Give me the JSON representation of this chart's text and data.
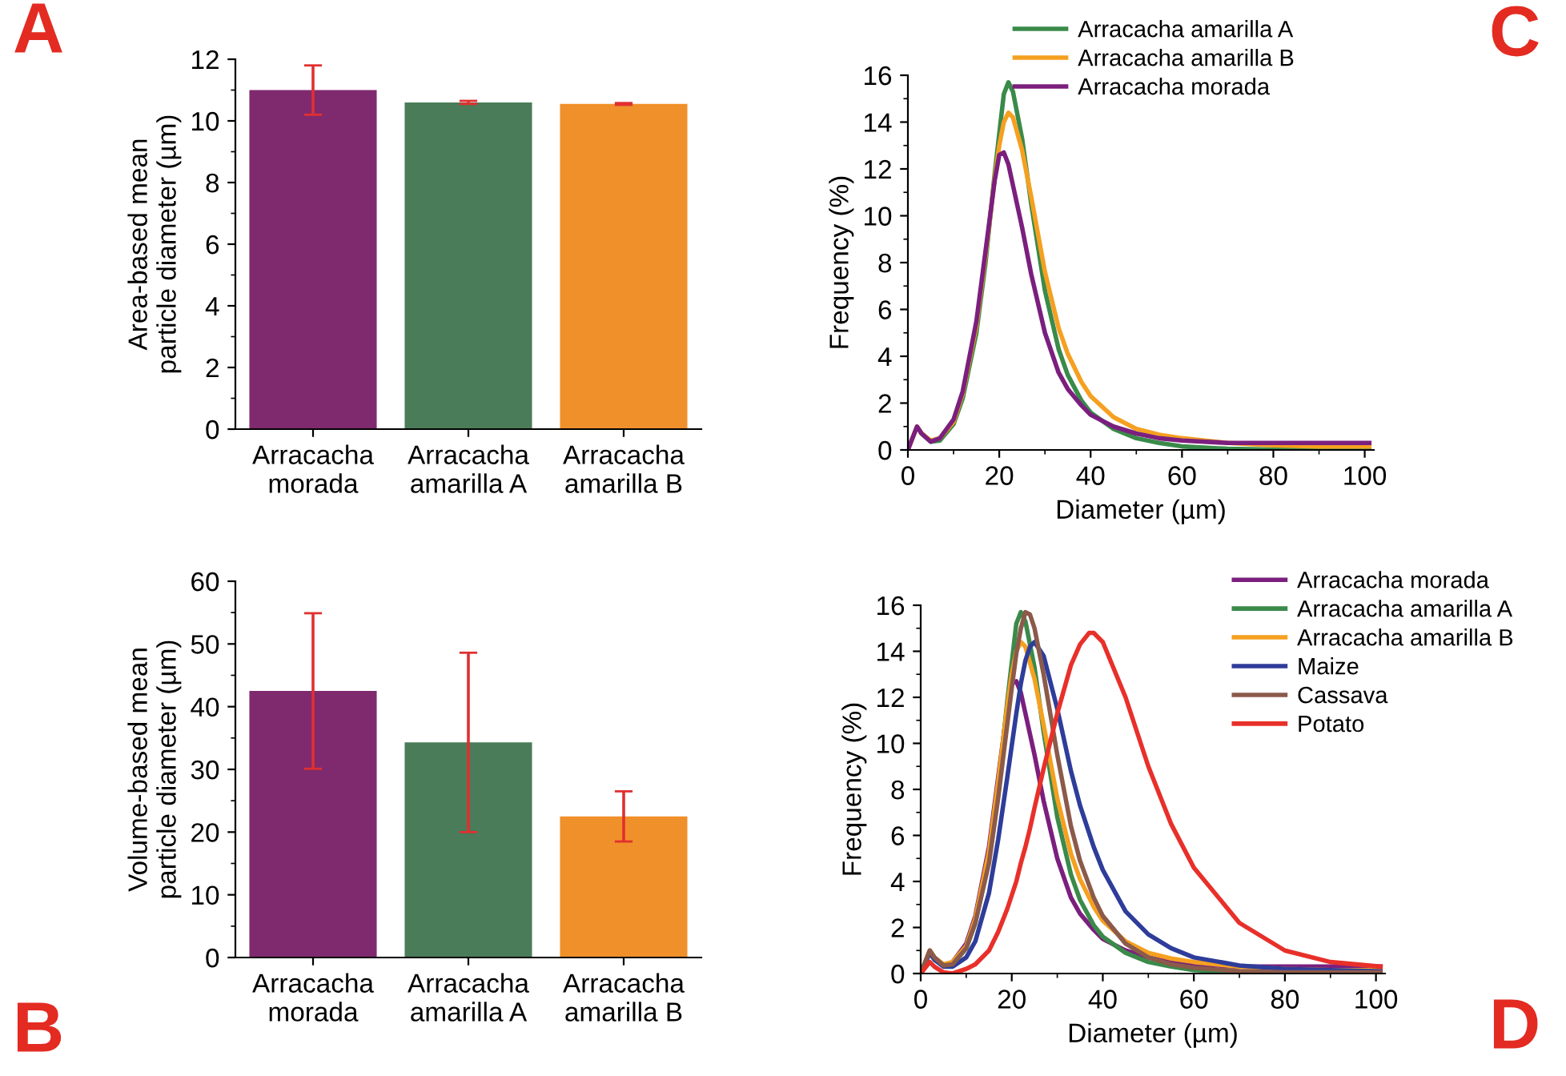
{
  "chart_data": [
    {
      "type": "bar",
      "ylabel": "Area-based mean\nparticle diameter (µm)",
      "categories": [
        "Arracacha\nmorada",
        "Arracacha\namarilla A",
        "Arracacha\namarilla B"
      ],
      "values": [
        11.0,
        10.6,
        10.55
      ],
      "colors": [
        "#7f2a6e",
        "#4a7c59",
        "#f0902a"
      ],
      "errors": [
        0.8,
        0.05,
        0.03
      ],
      "ylim": [
        0,
        12
      ],
      "yticks": [
        0,
        2,
        4,
        6,
        8,
        10,
        12
      ],
      "annotations": [
        "A"
      ]
    },
    {
      "type": "bar",
      "ylabel": "Volume-based mean\nparticle diameter (µm)",
      "categories": [
        "Arracacha\nmorada",
        "Arracacha\namarilla A",
        "Arracacha\namarilla B"
      ],
      "values": [
        42.5,
        34.3,
        22.5
      ],
      "colors": [
        "#7f2a6e",
        "#4a7c59",
        "#f0902a"
      ],
      "errors": [
        12.4,
        14.3,
        4.0
      ],
      "ylim": [
        0,
        60
      ],
      "yticks": [
        0,
        10,
        20,
        30,
        40,
        50,
        60
      ],
      "annotations": [
        "B"
      ]
    },
    {
      "type": "line",
      "xlabel": "Diameter (µm)",
      "ylabel": "Frequency (%)",
      "xlim": [
        0,
        102
      ],
      "xticks": [
        0,
        20,
        40,
        60,
        80,
        100
      ],
      "ylim": [
        0,
        16
      ],
      "yticks": [
        0,
        2,
        4,
        6,
        8,
        10,
        12,
        14,
        16
      ],
      "legend": "top",
      "annotations": [
        "C"
      ],
      "series": [
        {
          "name": "Arracacha amarilla A",
          "color": "#3a8a4a",
          "x": [
            3,
            5,
            7,
            10,
            12,
            15,
            17,
            19,
            20,
            21,
            22,
            23,
            25,
            27,
            30,
            33,
            35,
            38,
            40,
            45,
            50,
            55,
            60,
            70,
            80,
            90,
            101
          ],
          "values": [
            0.7,
            0.35,
            0.4,
            1.1,
            2.2,
            5.0,
            8.0,
            11.8,
            13.5,
            15.2,
            15.7,
            15.3,
            13.3,
            10.5,
            6.8,
            4.3,
            3.2,
            2.1,
            1.6,
            0.9,
            0.5,
            0.3,
            0.15,
            0.05,
            0.02,
            0,
            0
          ]
        },
        {
          "name": "Arracacha amarilla B",
          "color": "#f5a020",
          "x": [
            0,
            2,
            3,
            5,
            7,
            10,
            12,
            15,
            17,
            19,
            20,
            21,
            22,
            23,
            25,
            27,
            30,
            33,
            35,
            38,
            40,
            45,
            50,
            55,
            60,
            70,
            80,
            90,
            101
          ],
          "values": [
            0,
            1.0,
            0.7,
            0.4,
            0.5,
            1.2,
            2.4,
            5.3,
            8.3,
            11.6,
            13.0,
            14.0,
            14.4,
            14.2,
            12.8,
            10.8,
            7.6,
            5.2,
            4.1,
            2.9,
            2.3,
            1.4,
            0.9,
            0.65,
            0.5,
            0.3,
            0.2,
            0.15,
            0.15
          ]
        },
        {
          "name": "Arracacha morada",
          "color": "#7b1f7e",
          "x": [
            0,
            2,
            3,
            5,
            7,
            10,
            12,
            15,
            17,
            19,
            20,
            21,
            22,
            23,
            25,
            27,
            30,
            33,
            35,
            38,
            40,
            45,
            50,
            55,
            60,
            70,
            80,
            90,
            101
          ],
          "values": [
            0,
            1.0,
            0.7,
            0.35,
            0.5,
            1.3,
            2.5,
            5.5,
            8.5,
            11.5,
            12.6,
            12.7,
            12.2,
            11.3,
            9.5,
            7.5,
            5.0,
            3.3,
            2.6,
            1.9,
            1.5,
            1.0,
            0.7,
            0.5,
            0.4,
            0.3,
            0.3,
            0.3,
            0.3
          ]
        }
      ]
    },
    {
      "type": "line",
      "xlabel": "Diameter (µm)",
      "ylabel": "Frequency (%)",
      "xlim": [
        0,
        102
      ],
      "xticks": [
        0,
        20,
        40,
        60,
        80,
        100
      ],
      "ylim": [
        0,
        16
      ],
      "yticks": [
        0,
        2,
        4,
        6,
        8,
        10,
        12,
        14,
        16
      ],
      "legend": "right",
      "annotations": [
        "D"
      ],
      "series": [
        {
          "name": "Arracacha morada",
          "color": "#7b1f7e",
          "x": [
            0,
            2,
            3,
            5,
            7,
            10,
            12,
            15,
            17,
            19,
            20,
            21,
            22,
            23,
            25,
            27,
            30,
            33,
            35,
            38,
            40,
            45,
            50,
            55,
            60,
            70,
            80,
            90,
            101
          ],
          "values": [
            0,
            1.0,
            0.7,
            0.35,
            0.5,
            1.3,
            2.5,
            5.5,
            8.5,
            11.5,
            12.6,
            12.7,
            12.2,
            11.3,
            9.5,
            7.5,
            5.0,
            3.3,
            2.6,
            1.9,
            1.5,
            1.0,
            0.7,
            0.5,
            0.4,
            0.3,
            0.3,
            0.3,
            0.3
          ]
        },
        {
          "name": "Arracacha amarilla A",
          "color": "#3a8a4a",
          "x": [
            7,
            10,
            12,
            15,
            17,
            19,
            20,
            21,
            22,
            23,
            25,
            27,
            30,
            33,
            35,
            38,
            40,
            45,
            50,
            55,
            60,
            70
          ],
          "values": [
            0.4,
            1.1,
            2.2,
            5.0,
            8.0,
            11.8,
            13.5,
            15.2,
            15.7,
            15.3,
            13.3,
            10.5,
            6.8,
            4.3,
            3.2,
            2.1,
            1.6,
            0.9,
            0.5,
            0.3,
            0.15,
            0.05
          ]
        },
        {
          "name": "Arracacha amarilla B",
          "color": "#f5a020",
          "x": [
            0,
            2,
            3,
            5,
            7,
            10,
            12,
            15,
            17,
            19,
            20,
            21,
            22,
            23,
            25,
            27,
            30,
            33,
            35,
            38,
            40,
            45,
            50,
            55,
            60,
            70,
            80,
            90,
            101
          ],
          "values": [
            0,
            1.0,
            0.7,
            0.4,
            0.5,
            1.2,
            2.4,
            5.3,
            8.3,
            11.6,
            13.0,
            14.0,
            14.4,
            14.2,
            12.8,
            10.8,
            7.6,
            5.2,
            4.1,
            2.9,
            2.3,
            1.4,
            0.9,
            0.65,
            0.5,
            0.3,
            0.2,
            0.15,
            0.15
          ]
        },
        {
          "name": "Maize",
          "color": "#2e3d9a",
          "x": [
            0,
            2,
            3,
            5,
            7,
            10,
            12,
            15,
            17,
            19,
            20,
            21,
            22,
            23,
            24,
            25,
            27,
            30,
            33,
            35,
            38,
            40,
            45,
            50,
            55,
            60,
            70,
            80,
            90,
            101
          ],
          "values": [
            0,
            0.9,
            0.6,
            0.3,
            0.3,
            0.7,
            1.4,
            3.5,
            5.8,
            8.5,
            9.9,
            11.3,
            12.6,
            13.6,
            14.2,
            14.4,
            13.8,
            11.5,
            8.8,
            7.3,
            5.5,
            4.5,
            2.7,
            1.7,
            1.1,
            0.7,
            0.35,
            0.2,
            0.15,
            0.1
          ]
        },
        {
          "name": "Cassava",
          "color": "#8b5a4a",
          "x": [
            0,
            2,
            3,
            5,
            7,
            10,
            12,
            15,
            17,
            19,
            20,
            21,
            22,
            23,
            24,
            25,
            27,
            30,
            33,
            35,
            38,
            40,
            45,
            50,
            55,
            60,
            70,
            80,
            90,
            101
          ],
          "values": [
            0,
            1.0,
            0.7,
            0.35,
            0.4,
            1.1,
            2.2,
            4.8,
            7.6,
            10.8,
            12.4,
            13.9,
            15.0,
            15.7,
            15.6,
            15.0,
            13.0,
            9.5,
            6.4,
            4.9,
            3.3,
            2.5,
            1.3,
            0.7,
            0.4,
            0.25,
            0.1,
            0.05,
            0.05,
            0.05
          ]
        },
        {
          "name": "Potato",
          "color": "#e8302a",
          "x": [
            0,
            2,
            3,
            5,
            7,
            10,
            12,
            15,
            17,
            19,
            20,
            21,
            22,
            23,
            24,
            25,
            27,
            30,
            33,
            35,
            37,
            38,
            40,
            45,
            50,
            55,
            60,
            70,
            80,
            90,
            101
          ],
          "values": [
            0,
            0.5,
            0.3,
            0.05,
            0,
            0.2,
            0.4,
            1.0,
            1.8,
            2.8,
            3.4,
            4.0,
            4.8,
            5.5,
            6.3,
            7.2,
            8.9,
            11.3,
            13.4,
            14.3,
            14.8,
            14.8,
            14.4,
            12.0,
            9.0,
            6.5,
            4.6,
            2.2,
            1.0,
            0.5,
            0.3
          ]
        }
      ]
    }
  ]
}
